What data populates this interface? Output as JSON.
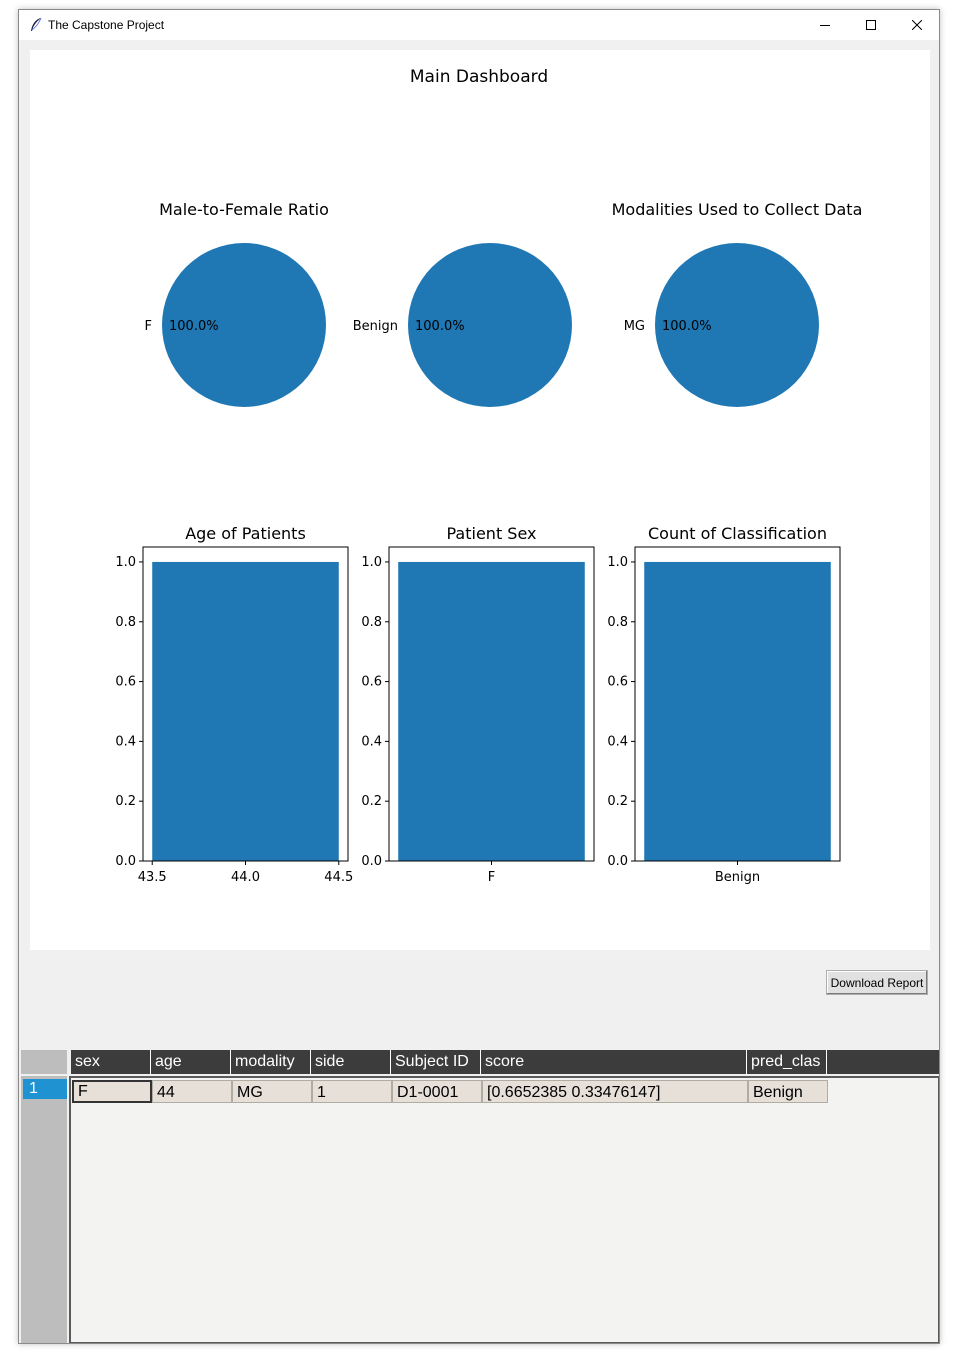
{
  "window": {
    "title": "The Capstone Project",
    "icon": "feather-icon",
    "controls": [
      "minimize-icon",
      "maximize-icon",
      "close-icon"
    ]
  },
  "dashboard": {
    "title": "Main Dashboard",
    "colors": {
      "series": "#1f77b4",
      "axis": "#000000"
    }
  },
  "chart_data": [
    {
      "type": "pie",
      "title": "Male-to-Female Ratio",
      "labels": [
        "F"
      ],
      "values": [
        100
      ],
      "autopct": [
        "100.0%"
      ]
    },
    {
      "type": "pie",
      "title": "",
      "labels": [
        "Benign"
      ],
      "values": [
        100
      ],
      "autopct": [
        "100.0%"
      ]
    },
    {
      "type": "pie",
      "title": "Modalities Used to Collect Data",
      "labels": [
        "MG"
      ],
      "values": [
        100
      ],
      "autopct": [
        "100.0%"
      ]
    },
    {
      "type": "bar",
      "title": "Age of Patients",
      "x": [
        44.0
      ],
      "values": [
        1.0
      ],
      "xticks": [
        "43.5",
        "44.0",
        "44.5"
      ],
      "xlim": [
        43.5,
        44.5
      ],
      "yticks": [
        "0.0",
        "0.2",
        "0.4",
        "0.6",
        "0.8",
        "1.0"
      ],
      "ylim": [
        0,
        1.05
      ]
    },
    {
      "type": "bar",
      "title": "Patient Sex",
      "categories": [
        "F"
      ],
      "values": [
        1.0
      ],
      "yticks": [
        "0.0",
        "0.2",
        "0.4",
        "0.6",
        "0.8",
        "1.0"
      ],
      "ylim": [
        0,
        1.05
      ]
    },
    {
      "type": "bar",
      "title": "Count of Classification",
      "categories": [
        "Benign"
      ],
      "values": [
        1.0
      ],
      "yticks": [
        "0.0",
        "0.2",
        "0.4",
        "0.6",
        "0.8",
        "1.0"
      ],
      "ylim": [
        0,
        1.05
      ]
    }
  ],
  "actions": {
    "download_label": "Download Report"
  },
  "table": {
    "columns": [
      "sex",
      "age",
      "modality",
      "side",
      "Subject ID",
      "score",
      "pred_clas"
    ],
    "rows": [
      {
        "index": "1",
        "cells": [
          "F",
          "44",
          "MG",
          "1",
          "D1-0001",
          "[0.6652385  0.33476147]",
          "Benign"
        ]
      }
    ]
  }
}
